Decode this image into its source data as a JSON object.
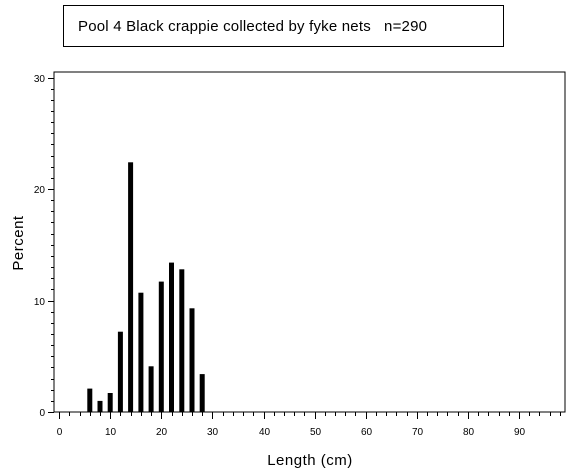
{
  "chart_data": {
    "type": "bar",
    "title": "Pool 4 Black crappie collected by fyke nets   n=290",
    "xlabel": "Length (cm)",
    "ylabel": "Percent",
    "xlim": [
      -1,
      99
    ],
    "ylim": [
      0,
      30.5
    ],
    "x_ticks": [
      0,
      10,
      20,
      30,
      40,
      50,
      60,
      70,
      80,
      90
    ],
    "y_ticks": [
      0,
      10,
      20,
      30
    ],
    "x_minor_step": 2,
    "y_minor_step": 1,
    "grid": false,
    "series": [
      {
        "x": [
          6,
          8,
          10,
          12,
          14,
          16,
          18,
          20,
          22,
          24,
          26,
          28
        ],
        "values": [
          2.1,
          1.0,
          1.7,
          7.2,
          22.4,
          10.7,
          4.1,
          11.7,
          13.4,
          12.8,
          9.3,
          3.4
        ]
      }
    ]
  }
}
